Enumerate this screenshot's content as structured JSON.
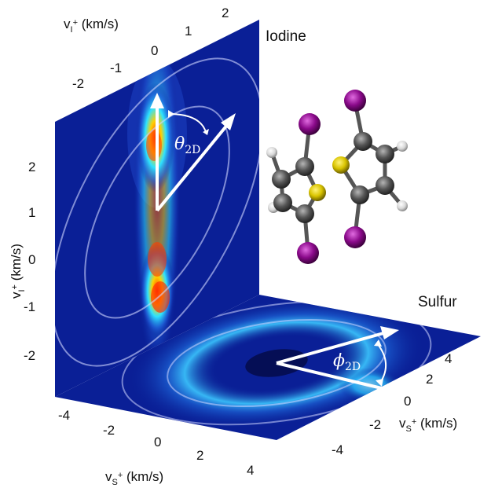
{
  "panels": {
    "iodine_label": "Iodine",
    "sulfur_label": "Sulfur"
  },
  "iodine_top_axis": {
    "label_main": "v",
    "label_sub": "I",
    "label_sup": "+",
    "label_unit": " (km/s)",
    "ticks": [
      "-2",
      "-1",
      "0",
      "1",
      "2"
    ]
  },
  "iodine_left_axis": {
    "label_main": "v",
    "label_sub": "I",
    "label_sup": "+",
    "label_unit": " (km/s)",
    "ticks": [
      "2",
      "1",
      "0",
      "-1",
      "-2"
    ]
  },
  "sulfur_bottom_axis": {
    "label_main": "v",
    "label_sub": "S",
    "label_sup": "+",
    "label_unit": " (km/s)",
    "ticks": [
      "-4",
      "-2",
      "0",
      "2",
      "4"
    ]
  },
  "sulfur_right_axis": {
    "label_main": "v",
    "label_sub": "S",
    "label_sup": "+",
    "label_unit": " (km/s)",
    "ticks": [
      "4",
      "2",
      "0",
      "-2",
      "-4"
    ]
  },
  "angles": {
    "theta_symbol": "θ",
    "theta_sub": "2D",
    "phi_symbol": "ϕ",
    "phi_sub": "2D"
  },
  "colors": {
    "background_blue": "#0a1f96",
    "hot_red": "#ff2a00",
    "iodine_atom": "#8b0a8b",
    "carbon_atom": "#555555",
    "sulfur_atom": "#d9c400",
    "hydrogen_atom": "#e8e8e8"
  }
}
